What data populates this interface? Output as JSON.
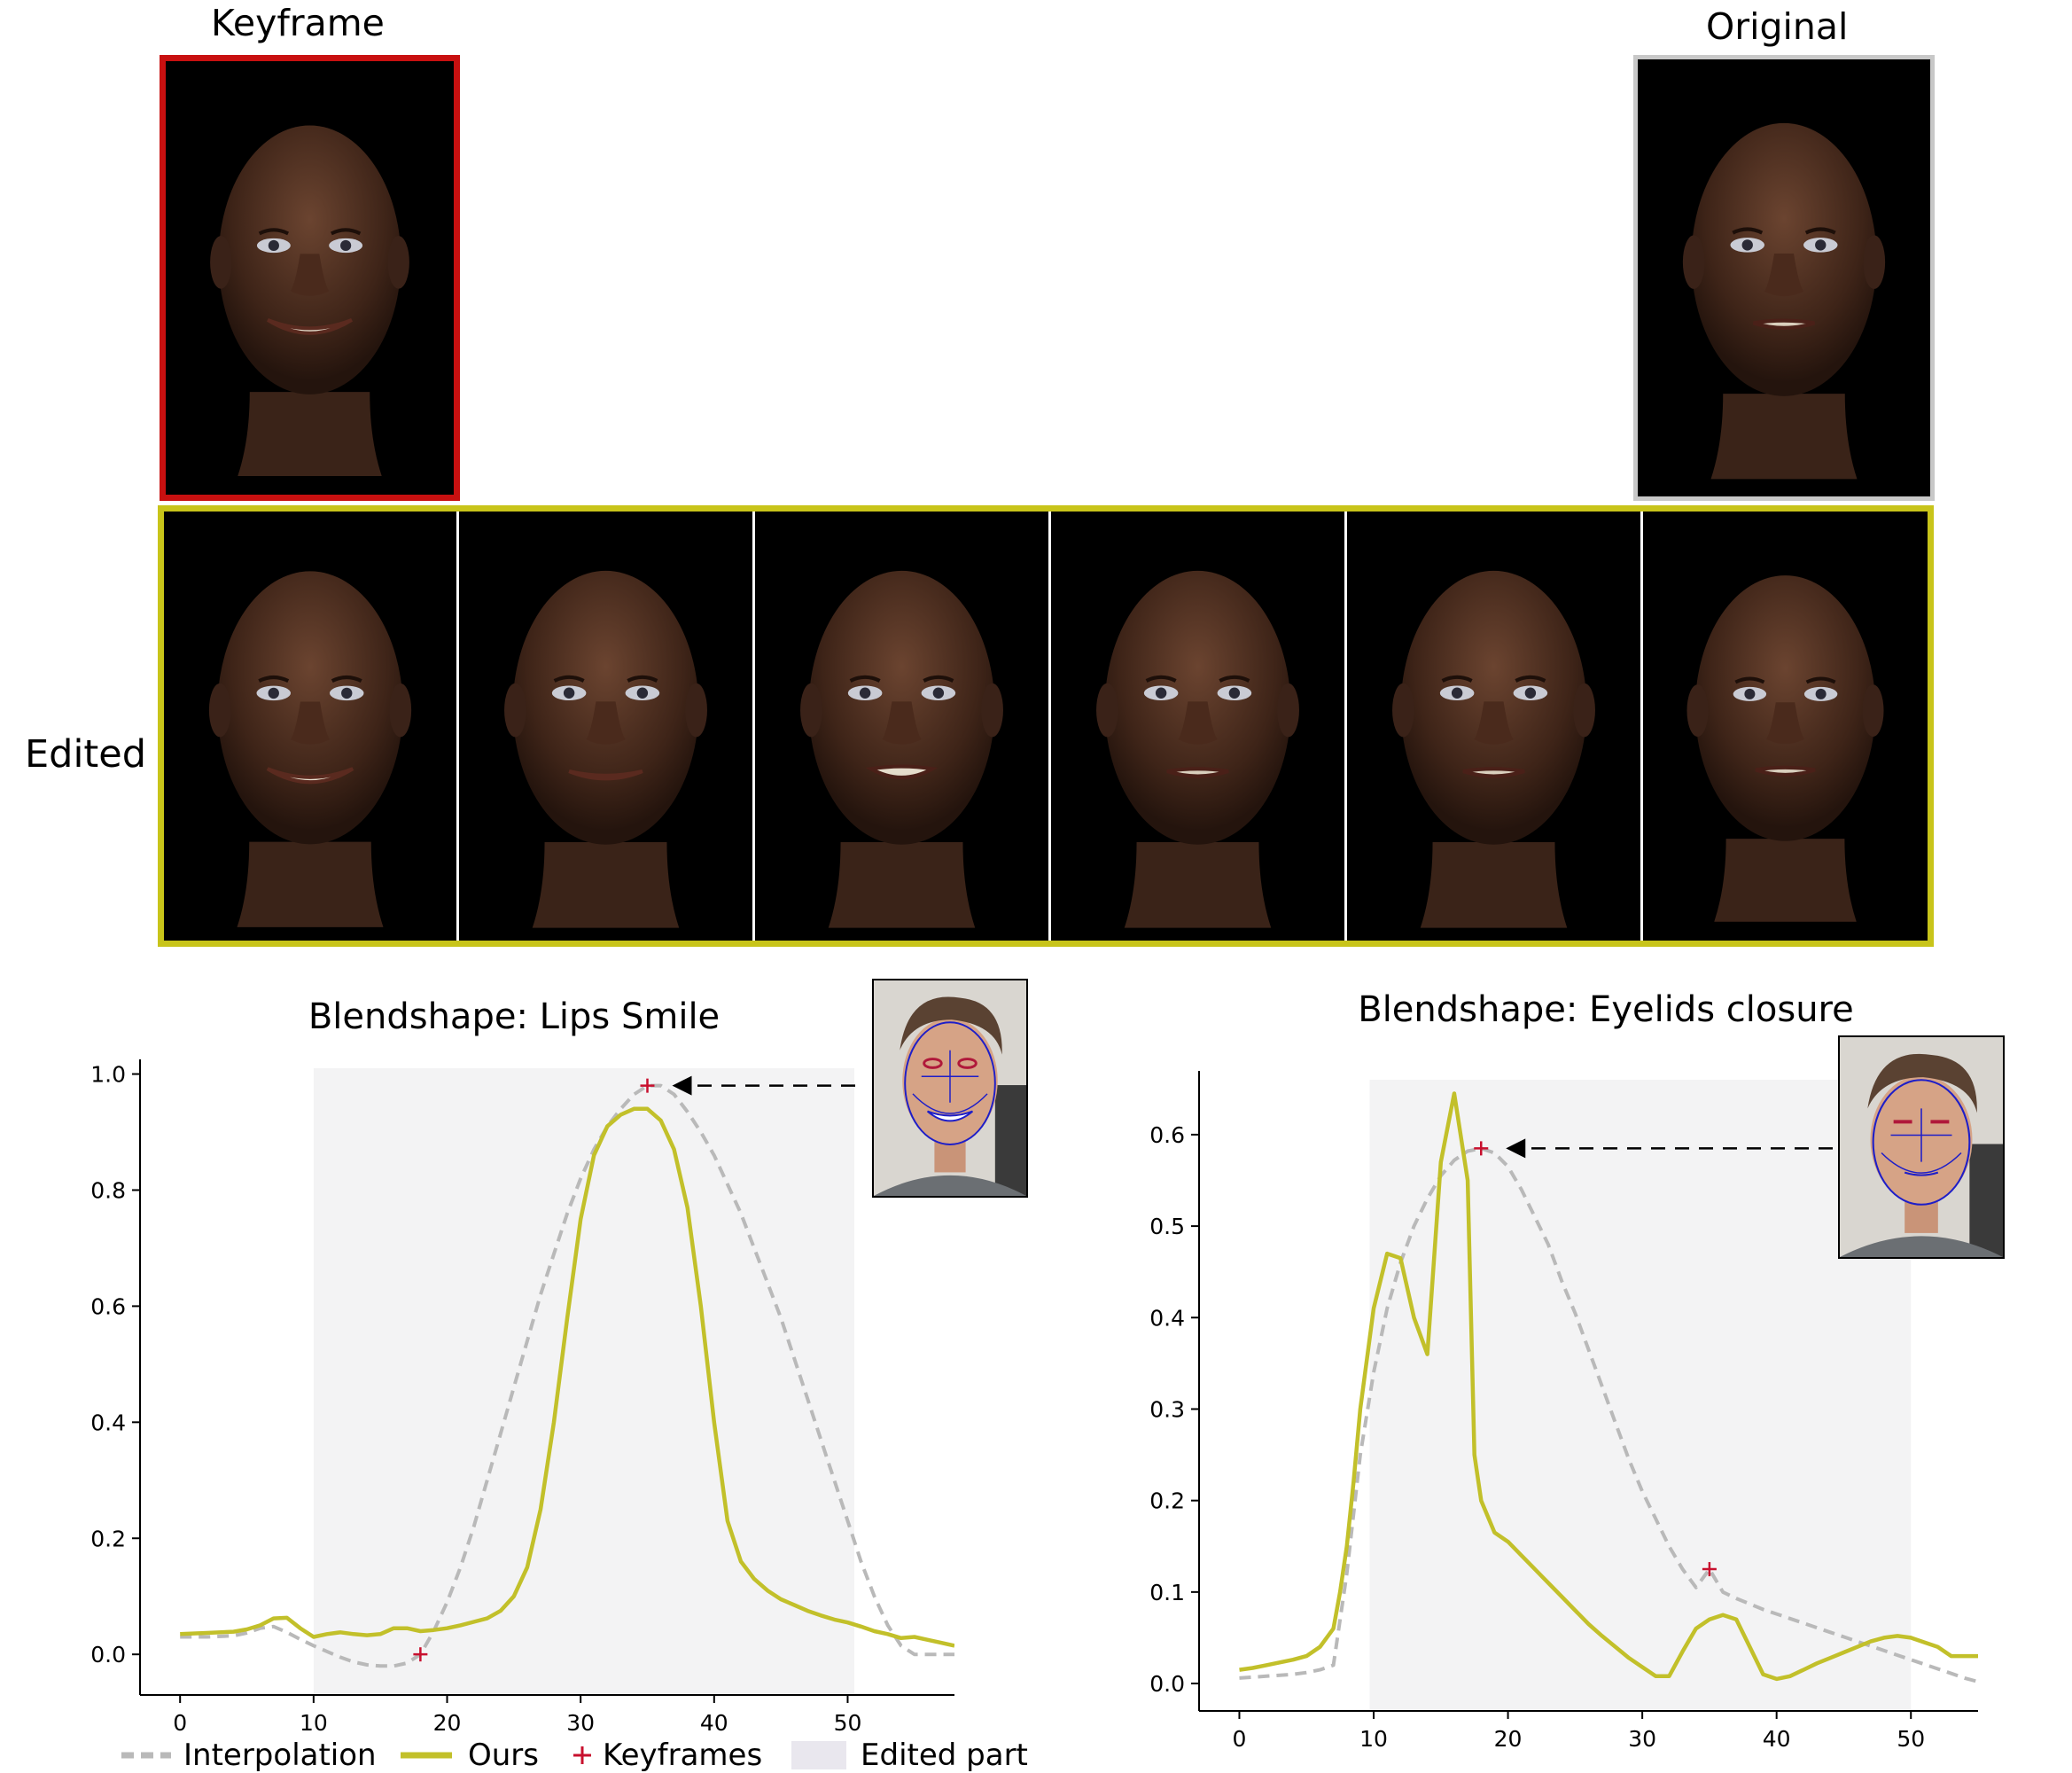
{
  "labels": {
    "keyframe": "Keyframe",
    "original": "Original",
    "edited": "Edited"
  },
  "colors": {
    "keyframe_border": "#c81010",
    "original_border": "#c8c8c8",
    "edited_border": "#c8c41a",
    "ours": "#c2c02a",
    "interpolation": "#b9b9b9",
    "keyframe_marker": "#c8102e",
    "edited_region": "#f3f3f4"
  },
  "face_icons": {
    "keyframe": "smiling-face-render",
    "original": "neutral-face-render",
    "edited_sequence": [
      "smiling-face-render",
      "slight-smile-face-render",
      "open-mouth-face-render",
      "neutral-face-render",
      "neutral-face-render",
      "neutral-face-render"
    ],
    "source_photos": [
      "smiling-person-landmark-photo",
      "eyes-closed-person-landmark-photo"
    ]
  },
  "legend": {
    "interpolation": "Interpolation",
    "ours": "Ours",
    "keyframes": "Keyframes",
    "edited_part": "Edited part"
  },
  "chart_data": [
    {
      "type": "line",
      "title": "Blendshape: Lips Smile",
      "xlabel": "",
      "ylabel": "",
      "xlim": [
        -3,
        58
      ],
      "ylim": [
        -0.07,
        1.01
      ],
      "xticks": [
        0,
        10,
        20,
        30,
        40,
        50
      ],
      "yticks": [
        0.0,
        0.2,
        0.4,
        0.6,
        0.8,
        1.0
      ],
      "ytick_labels": [
        "0.0",
        "0.2",
        "0.4",
        "0.6",
        "0.8",
        "1.0"
      ],
      "edited_region": [
        10,
        50.5
      ],
      "series": [
        {
          "name": "Ours",
          "style": "solid",
          "x": [
            0,
            2,
            4,
            5,
            6,
            7,
            8,
            9,
            10,
            11,
            12,
            13,
            14,
            15,
            16,
            17,
            18,
            19,
            20,
            21,
            22,
            23,
            24,
            25,
            26,
            27,
            28,
            29,
            30,
            31,
            32,
            33,
            34,
            35,
            36,
            37,
            38,
            39,
            40,
            41,
            42,
            43,
            44,
            45,
            46,
            47,
            48,
            49,
            50,
            51,
            52,
            53,
            54,
            55,
            56,
            57,
            58
          ],
          "y": [
            0.035,
            0.037,
            0.039,
            0.043,
            0.05,
            0.062,
            0.063,
            0.045,
            0.03,
            0.035,
            0.038,
            0.035,
            0.033,
            0.035,
            0.045,
            0.045,
            0.04,
            0.042,
            0.045,
            0.05,
            0.056,
            0.062,
            0.075,
            0.1,
            0.15,
            0.25,
            0.4,
            0.58,
            0.75,
            0.86,
            0.91,
            0.93,
            0.94,
            0.94,
            0.92,
            0.87,
            0.77,
            0.6,
            0.4,
            0.23,
            0.16,
            0.13,
            0.11,
            0.095,
            0.085,
            0.075,
            0.067,
            0.06,
            0.055,
            0.048,
            0.04,
            0.035,
            0.028,
            0.03,
            0.025,
            0.02,
            0.015
          ]
        },
        {
          "name": "Interpolation",
          "style": "dashed",
          "x": [
            0,
            2,
            4,
            5,
            6,
            7,
            8,
            9,
            10,
            11,
            12,
            13,
            14,
            15,
            16,
            17,
            18,
            19,
            20,
            21,
            22,
            23,
            24,
            25,
            26,
            27,
            28,
            29,
            30,
            31,
            32,
            33,
            34,
            35,
            36,
            37,
            38,
            39,
            40,
            41,
            42,
            43,
            44,
            45,
            46,
            47,
            48,
            49,
            50,
            51,
            52,
            53,
            54,
            55,
            56,
            57,
            58
          ],
          "y": [
            0.03,
            0.03,
            0.032,
            0.037,
            0.045,
            0.048,
            0.038,
            0.026,
            0.015,
            0.005,
            -0.005,
            -0.013,
            -0.018,
            -0.02,
            -0.02,
            -0.015,
            0.0,
            0.04,
            0.09,
            0.15,
            0.22,
            0.3,
            0.38,
            0.46,
            0.54,
            0.62,
            0.69,
            0.76,
            0.82,
            0.87,
            0.91,
            0.94,
            0.965,
            0.98,
            0.98,
            0.965,
            0.935,
            0.9,
            0.86,
            0.81,
            0.76,
            0.7,
            0.64,
            0.58,
            0.51,
            0.44,
            0.37,
            0.3,
            0.23,
            0.16,
            0.1,
            0.05,
            0.015,
            0.0,
            0.0,
            0.0,
            0.0
          ]
        }
      ],
      "keyframes": {
        "x": [
          18,
          35
        ],
        "y": [
          0.0,
          0.98
        ]
      }
    },
    {
      "type": "line",
      "title": "Blendshape: Eyelids closure",
      "xlabel": "",
      "ylabel": "",
      "xlim": [
        -3,
        55
      ],
      "ylim": [
        -0.03,
        0.66
      ],
      "xticks": [
        0,
        10,
        20,
        30,
        40,
        50
      ],
      "yticks": [
        0.0,
        0.1,
        0.2,
        0.3,
        0.4,
        0.5,
        0.6
      ],
      "ytick_labels": [
        "0.0",
        "0.1",
        "0.2",
        "0.3",
        "0.4",
        "0.5",
        "0.6"
      ],
      "edited_region": [
        9.7,
        50
      ],
      "series": [
        {
          "name": "Ours",
          "style": "solid",
          "x": [
            0,
            1,
            2,
            3,
            4,
            5,
            6,
            7,
            7.5,
            8,
            8.5,
            9,
            10,
            11,
            12,
            13,
            14,
            15,
            16,
            17,
            17.5,
            18,
            19,
            20,
            21,
            22,
            23,
            24,
            25,
            26,
            27,
            28,
            29,
            30,
            31,
            32,
            33,
            34,
            35,
            36,
            37,
            38,
            39,
            40,
            41,
            42,
            43,
            44,
            45,
            46,
            47,
            48,
            49,
            50,
            51,
            52,
            53,
            54,
            55
          ],
          "y": [
            0.015,
            0.017,
            0.02,
            0.023,
            0.026,
            0.03,
            0.04,
            0.06,
            0.1,
            0.15,
            0.22,
            0.3,
            0.41,
            0.47,
            0.465,
            0.4,
            0.36,
            0.57,
            0.645,
            0.55,
            0.25,
            0.2,
            0.165,
            0.155,
            0.14,
            0.125,
            0.11,
            0.095,
            0.08,
            0.065,
            0.052,
            0.04,
            0.028,
            0.018,
            0.008,
            0.008,
            0.035,
            0.06,
            0.07,
            0.075,
            0.07,
            0.04,
            0.01,
            0.005,
            0.008,
            0.015,
            0.022,
            0.028,
            0.034,
            0.04,
            0.046,
            0.05,
            0.052,
            0.05,
            0.045,
            0.04,
            0.03,
            0.03,
            0.03
          ]
        },
        {
          "name": "Interpolation",
          "style": "dashed",
          "x": [
            0,
            2,
            4,
            5,
            6,
            7,
            8,
            9,
            10,
            11,
            12,
            13,
            14,
            15,
            16,
            17,
            18,
            19,
            20,
            21,
            22,
            23,
            24,
            25,
            26,
            27,
            28,
            29,
            30,
            31,
            32,
            33,
            34,
            35,
            36,
            37,
            38,
            39,
            40,
            41,
            42,
            43,
            44,
            45,
            46,
            47,
            48,
            49,
            50,
            51,
            52,
            53,
            54,
            55
          ],
          "y": [
            0.006,
            0.008,
            0.01,
            0.012,
            0.015,
            0.02,
            0.12,
            0.25,
            0.34,
            0.41,
            0.46,
            0.5,
            0.53,
            0.555,
            0.572,
            0.582,
            0.585,
            0.58,
            0.565,
            0.54,
            0.51,
            0.48,
            0.44,
            0.405,
            0.365,
            0.325,
            0.285,
            0.245,
            0.21,
            0.18,
            0.15,
            0.125,
            0.105,
            0.125,
            0.1,
            0.093,
            0.087,
            0.081,
            0.076,
            0.071,
            0.066,
            0.061,
            0.056,
            0.051,
            0.046,
            0.041,
            0.036,
            0.031,
            0.026,
            0.021,
            0.016,
            0.011,
            0.006,
            0.002
          ]
        }
      ],
      "keyframes": {
        "x": [
          18,
          35
        ],
        "y": [
          0.585,
          0.125
        ]
      }
    }
  ]
}
